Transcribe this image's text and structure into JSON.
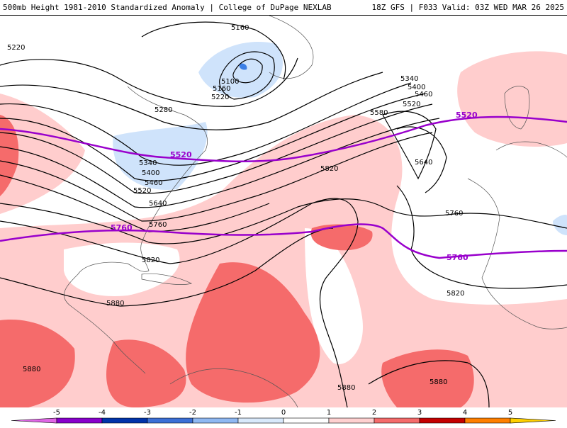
{
  "header": {
    "title": "500mb Height 1981-2010 Standardized Anomaly | College of DuPage NEXLAB",
    "run_info": "18Z GFS | F033 Valid: 03Z WED MAR 26 2025"
  },
  "map": {
    "contour_labels": [
      "5220",
      "5160",
      "5100",
      "5160",
      "5220",
      "5280",
      "5340",
      "5400",
      "5460",
      "5520",
      "5580",
      "5640",
      "5760",
      "5820",
      "5880",
      "5880",
      "5880",
      "5880",
      "5340",
      "5400",
      "5460",
      "5520",
      "5640",
      "5760",
      "5820"
    ],
    "highlight_labels": [
      "5520",
      "5520",
      "5760",
      "5760"
    ],
    "colors": {
      "strong_neg": "#3b7fe6",
      "neg": "#cfe3fb",
      "pos": "#ffcdcd",
      "strong_pos": "#f56b6b",
      "highlight_contour": "#9900cc"
    }
  },
  "colorbar": {
    "ticks": [
      "-5",
      "-4",
      "-3",
      "-2",
      "-1",
      "0",
      "1",
      "2",
      "3",
      "4",
      "5"
    ],
    "colors": [
      "#e066e6",
      "#8800cc",
      "#0033aa",
      "#3b6fd6",
      "#8fb8f2",
      "#d9e9fb",
      "#ffffff",
      "#ffd0d0",
      "#f56b6b",
      "#c40000",
      "#ff7f00",
      "#ffd000"
    ]
  }
}
